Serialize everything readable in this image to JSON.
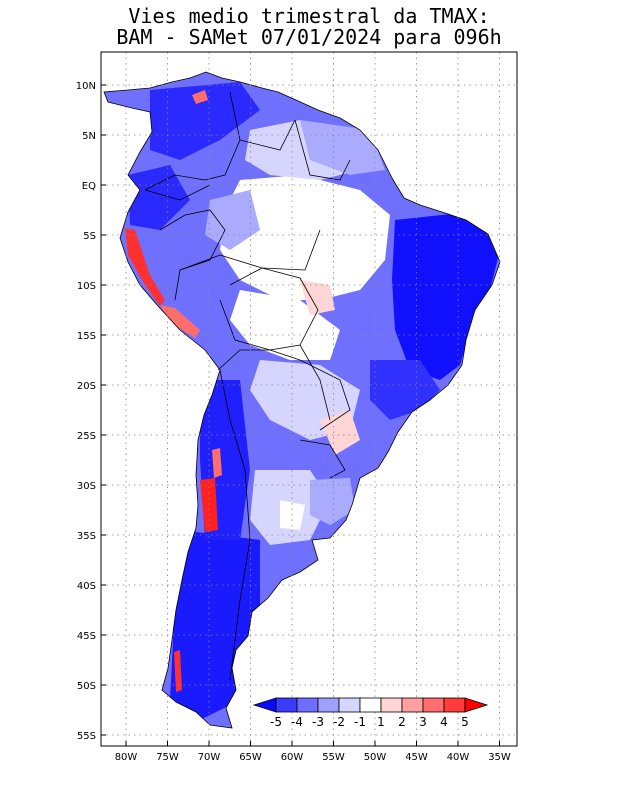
{
  "title_line1": "Vies medio trimestral da TMAX:",
  "title_line2": "BAM - SAMet 07/01/2024  para 096h",
  "lon_labels": [
    "80W",
    "75W",
    "70W",
    "65W",
    "60W",
    "55W",
    "50W",
    "45W",
    "40W",
    "35W"
  ],
  "lat_labels": [
    "10N",
    "5N",
    "EQ",
    "5S",
    "10S",
    "15S",
    "20S",
    "25S",
    "30S",
    "35S",
    "40S",
    "45S",
    "50S",
    "55S"
  ],
  "colorbar": {
    "labels": [
      "-5",
      "-4",
      "-3",
      "-2",
      "-1",
      "1",
      "2",
      "3",
      "4",
      "5"
    ],
    "colors": [
      "#0a0aff",
      "#3b3bff",
      "#6d6dff",
      "#9f9fff",
      "#d5d5ff",
      "#ffffff",
      "#ffd5d5",
      "#ff9f9f",
      "#ff6d6d",
      "#ff3b3b",
      "#ff0000"
    ]
  },
  "palette": {
    "strong_blue": "#1a1aff",
    "mid_blue": "#5a5aff",
    "light_blue": "#aaaaff",
    "pale_blue": "#dcdcff",
    "pale_red": "#ffcccc",
    "red": "#ff3030"
  }
}
